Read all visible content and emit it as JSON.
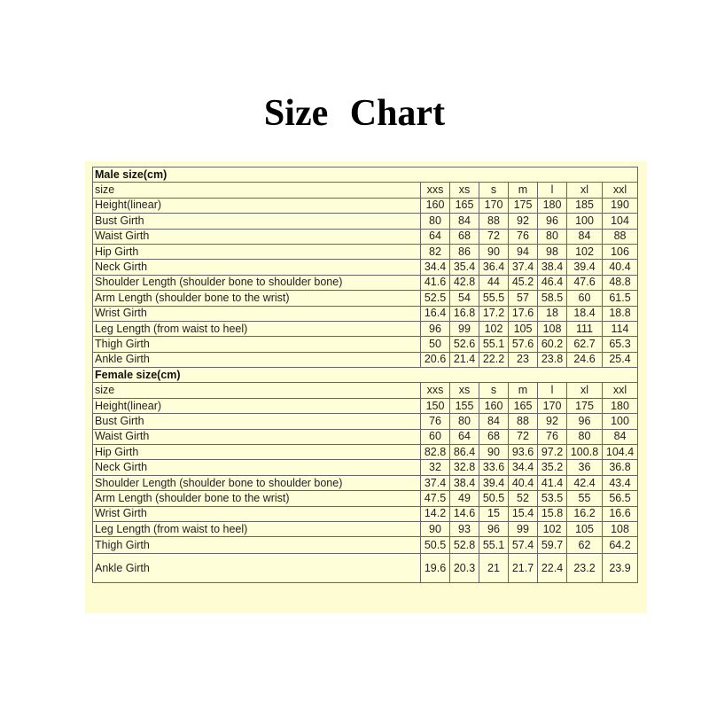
{
  "title": "Size  Chart",
  "sections": [
    {
      "heading": "Male size(cm)",
      "rows": [
        {
          "label": "size",
          "values": [
            "xxs",
            "xs",
            "s",
            "m",
            "l",
            "xl",
            "xxl"
          ]
        },
        {
          "label": "Height(linear)",
          "values": [
            "160",
            "165",
            "170",
            "175",
            "180",
            "185",
            "190"
          ]
        },
        {
          "label": "Bust Girth",
          "values": [
            "80",
            "84",
            "88",
            "92",
            "96",
            "100",
            "104"
          ]
        },
        {
          "label": "Waist Girth",
          "values": [
            "64",
            "68",
            "72",
            "76",
            "80",
            "84",
            "88"
          ]
        },
        {
          "label": "Hip Girth",
          "values": [
            "82",
            "86",
            "90",
            "94",
            "98",
            "102",
            "106"
          ]
        },
        {
          "label": "Neck Girth",
          "values": [
            "34.4",
            "35.4",
            "36.4",
            "37.4",
            "38.4",
            "39.4",
            "40.4"
          ]
        },
        {
          "label": "Shoulder Length (shoulder bone to shoulder bone)",
          "values": [
            "41.6",
            "42.8",
            "44",
            "45.2",
            "46.4",
            "47.6",
            "48.8"
          ]
        },
        {
          "label": "Arm Length (shoulder bone to the wrist)",
          "values": [
            "52.5",
            "54",
            "55.5",
            "57",
            "58.5",
            "60",
            "61.5"
          ]
        },
        {
          "label": "Wrist Girth",
          "values": [
            "16.4",
            "16.8",
            "17.2",
            "17.6",
            "18",
            "18.4",
            "18.8"
          ]
        },
        {
          "label": "Leg Length (from waist to heel)",
          "values": [
            "96",
            "99",
            "102",
            "105",
            "108",
            "111",
            "114"
          ]
        },
        {
          "label": "Thigh Girth",
          "values": [
            "50",
            "52.6",
            "55.1",
            "57.6",
            "60.2",
            "62.7",
            "65.3"
          ]
        },
        {
          "label": "Ankle Girth",
          "values": [
            "20.6",
            "21.4",
            "22.2",
            "23",
            "23.8",
            "24.6",
            "25.4"
          ]
        }
      ]
    },
    {
      "heading": "Female size(cm)",
      "rows": [
        {
          "label": "size",
          "values": [
            "xxs",
            "xs",
            "s",
            "m",
            "l",
            "xl",
            "xxl"
          ]
        },
        {
          "label": "Height(linear)",
          "values": [
            "150",
            "155",
            "160",
            "165",
            "170",
            "175",
            "180"
          ]
        },
        {
          "label": "Bust Girth",
          "values": [
            "76",
            "80",
            "84",
            "88",
            "92",
            "96",
            "100"
          ]
        },
        {
          "label": "Waist Girth",
          "values": [
            "60",
            "64",
            "68",
            "72",
            "76",
            "80",
            "84"
          ]
        },
        {
          "label": "Hip Girth",
          "values": [
            "82.8",
            "86.4",
            "90",
            "93.6",
            "97.2",
            "100.8",
            "104.4"
          ]
        },
        {
          "label": "Neck Girth",
          "values": [
            "32",
            "32.8",
            "33.6",
            "34.4",
            "35.2",
            "36",
            "36.8"
          ]
        },
        {
          "label": "Shoulder Length (shoulder bone to shoulder bone)",
          "values": [
            "37.4",
            "38.4",
            "39.4",
            "40.4",
            "41.4",
            "42.4",
            "43.4"
          ]
        },
        {
          "label": "Arm Length (shoulder bone to the wrist)",
          "values": [
            "47.5",
            "49",
            "50.5",
            "52",
            "53.5",
            "55",
            "56.5"
          ]
        },
        {
          "label": "Wrist Girth",
          "values": [
            "14.2",
            "14.6",
            "15",
            "15.4",
            "15.8",
            "16.2",
            "16.6"
          ]
        },
        {
          "label": "Leg Length (from waist to heel)",
          "values": [
            "90",
            "93",
            "96",
            "99",
            "102",
            "105",
            "108"
          ]
        },
        {
          "label": "Thigh Girth",
          "values": [
            "50.5",
            "52.8",
            "55.1",
            "57.4",
            "59.7",
            "62",
            "64.2"
          ]
        },
        {
          "label": "Ankle Girth",
          "values": [
            "19.6",
            "20.3",
            "21",
            "21.7",
            "22.4",
            "23.2",
            "23.9"
          ]
        }
      ]
    }
  ]
}
